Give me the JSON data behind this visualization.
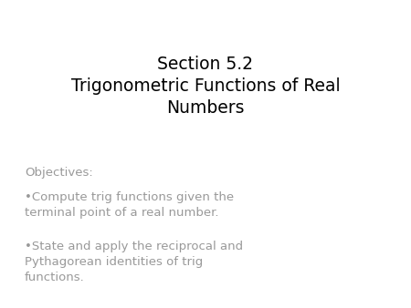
{
  "title_line1": "Section 5.2",
  "title_line2": "Trigonometric Functions of Real",
  "title_line3": "Numbers",
  "title_color": "#000000",
  "title_fontsize": 13.5,
  "objectives_label": "Objectives:",
  "objectives_color": "#999999",
  "objectives_fontsize": 9.5,
  "bullet1_line1": "•Compute trig functions given the",
  "bullet1_line2": "terminal point of a real number.",
  "bullet2_line1": "•State and apply the reciprocal and",
  "bullet2_line2": "Pythagorean identities of trig",
  "bullet2_line3": "functions.",
  "bullet_color": "#999999",
  "bullet_fontsize": 9.5,
  "background_color": "#ffffff"
}
